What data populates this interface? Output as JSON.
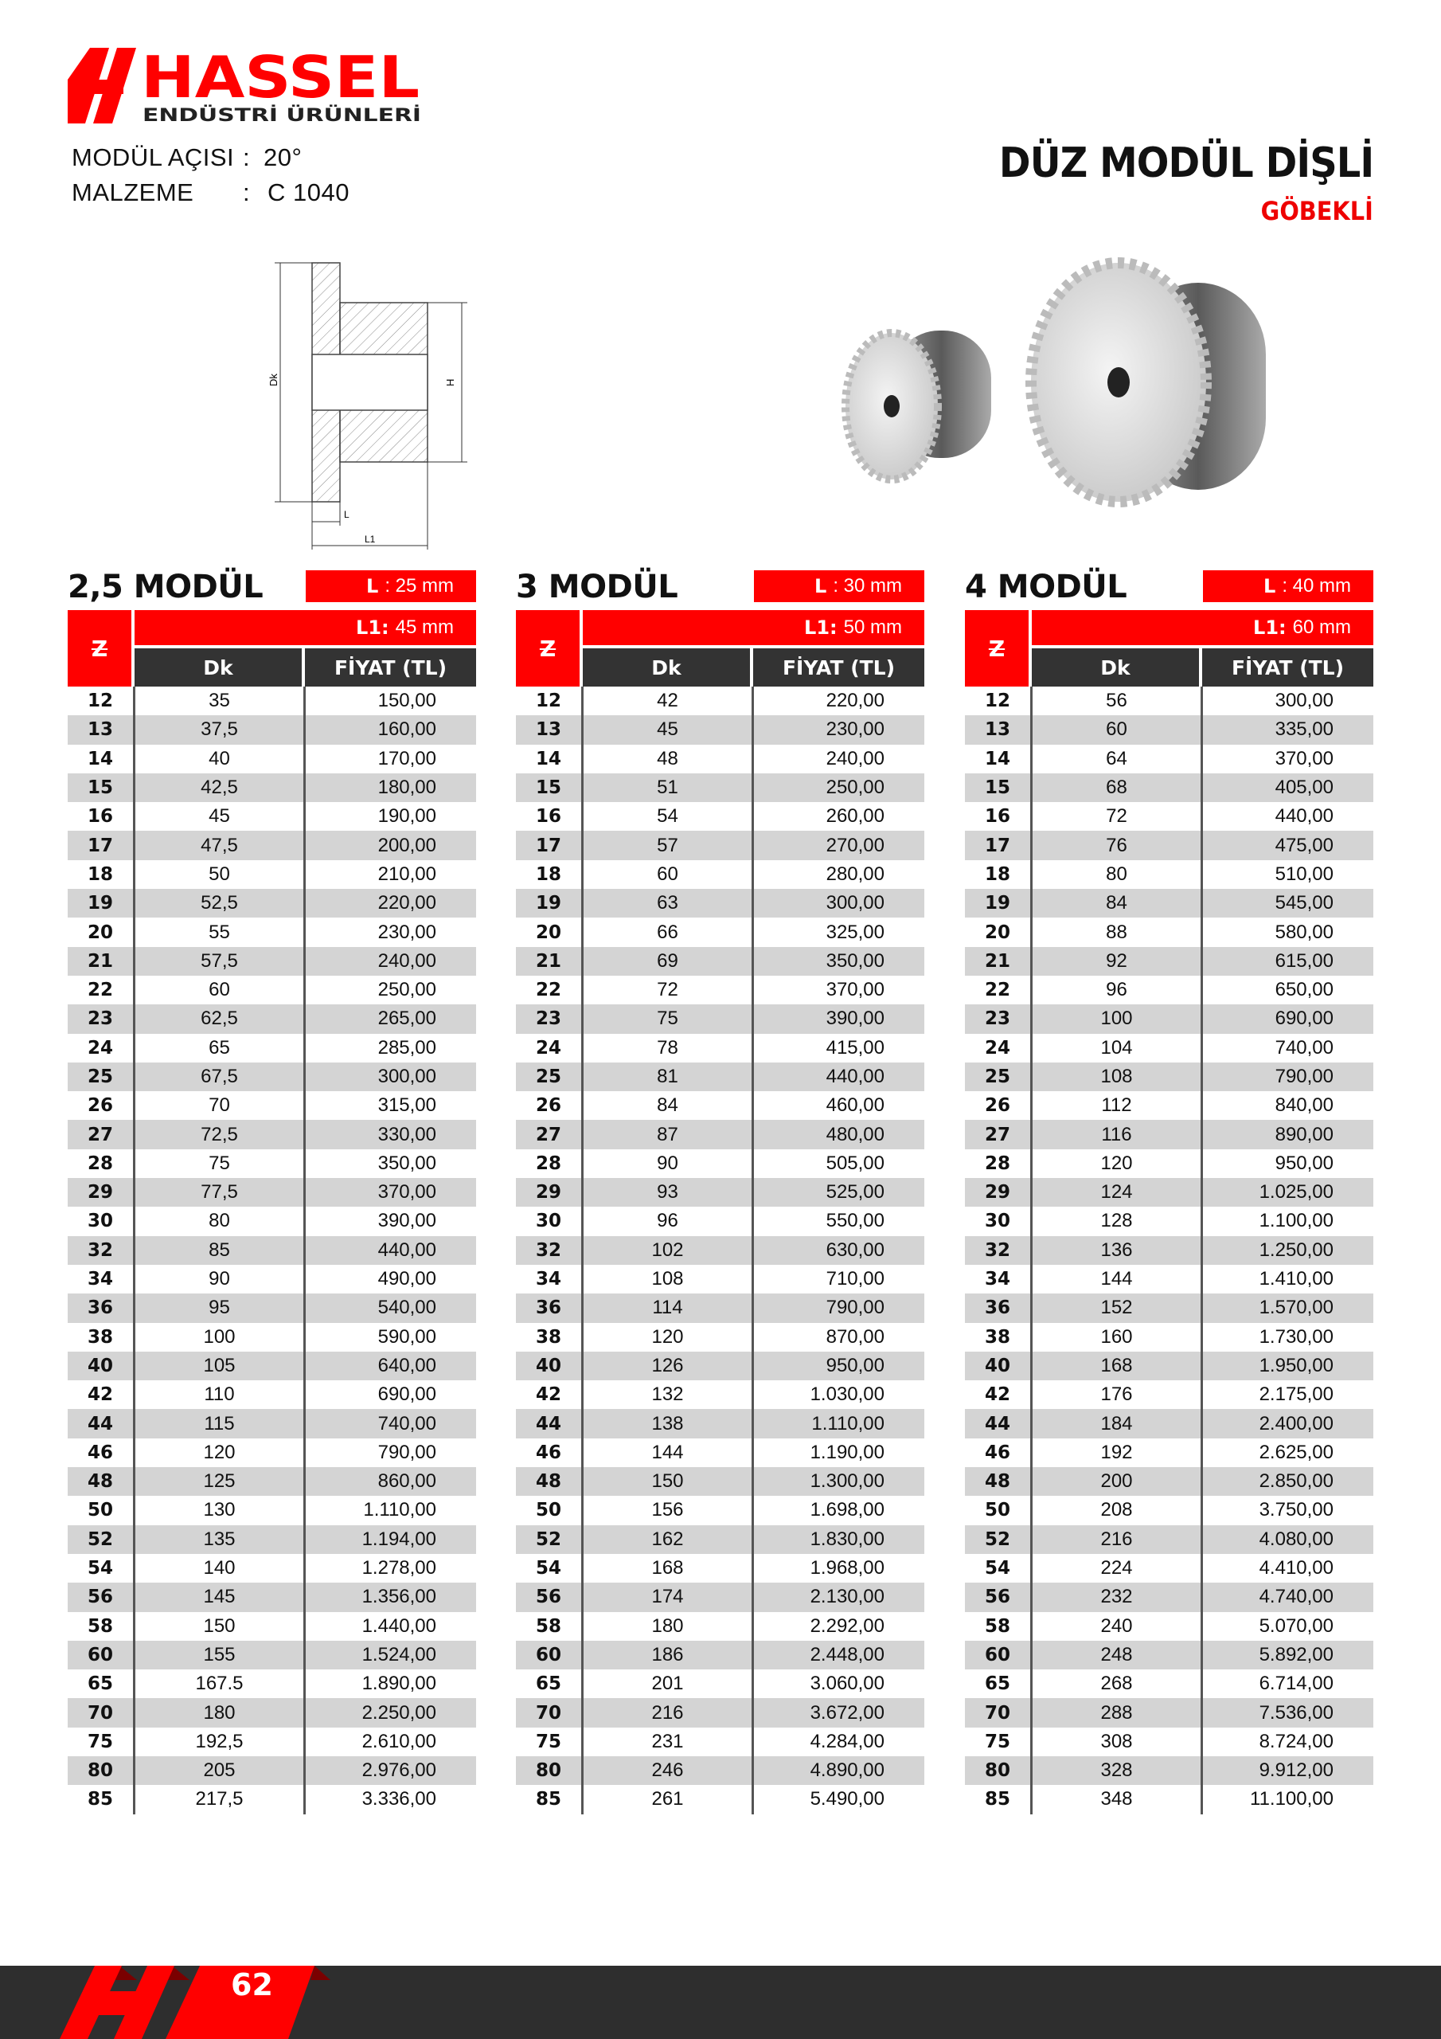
{
  "brand": {
    "name": "HASSEL",
    "tagline": "ENDÜSTRİ ÜRÜNLERİ",
    "color": "#ff0000"
  },
  "info": [
    {
      "label": "MODÜL AÇISI",
      "sep": ":",
      "value": "20°"
    },
    {
      "label": "MALZEME",
      "sep": ":",
      "value": "C 1040"
    }
  ],
  "header": {
    "title": "DÜZ MODÜL DİŞLİ",
    "subtitle": "GÖBEKLİ"
  },
  "diagram": {
    "dk": "Dk",
    "h": "H",
    "l": "L",
    "l1": "L1"
  },
  "tables": [
    {
      "module": "2,5 MODÜL",
      "l_label": "L",
      "l_value": ": 25 mm",
      "l1_label": "L1:",
      "l1_value": "45 mm",
      "z_header": "Z",
      "dk_header": "Dk",
      "price_header": "FİYAT (TL)",
      "rows": [
        [
          "12",
          "35",
          "150,00"
        ],
        [
          "13",
          "37,5",
          "160,00"
        ],
        [
          "14",
          "40",
          "170,00"
        ],
        [
          "15",
          "42,5",
          "180,00"
        ],
        [
          "16",
          "45",
          "190,00"
        ],
        [
          "17",
          "47,5",
          "200,00"
        ],
        [
          "18",
          "50",
          "210,00"
        ],
        [
          "19",
          "52,5",
          "220,00"
        ],
        [
          "20",
          "55",
          "230,00"
        ],
        [
          "21",
          "57,5",
          "240,00"
        ],
        [
          "22",
          "60",
          "250,00"
        ],
        [
          "23",
          "62,5",
          "265,00"
        ],
        [
          "24",
          "65",
          "285,00"
        ],
        [
          "25",
          "67,5",
          "300,00"
        ],
        [
          "26",
          "70",
          "315,00"
        ],
        [
          "27",
          "72,5",
          "330,00"
        ],
        [
          "28",
          "75",
          "350,00"
        ],
        [
          "29",
          "77,5",
          "370,00"
        ],
        [
          "30",
          "80",
          "390,00"
        ],
        [
          "32",
          "85",
          "440,00"
        ],
        [
          "34",
          "90",
          "490,00"
        ],
        [
          "36",
          "95",
          "540,00"
        ],
        [
          "38",
          "100",
          "590,00"
        ],
        [
          "40",
          "105",
          "640,00"
        ],
        [
          "42",
          "110",
          "690,00"
        ],
        [
          "44",
          "115",
          "740,00"
        ],
        [
          "46",
          "120",
          "790,00"
        ],
        [
          "48",
          "125",
          "860,00"
        ],
        [
          "50",
          "130",
          "1.110,00"
        ],
        [
          "52",
          "135",
          "1.194,00"
        ],
        [
          "54",
          "140",
          "1.278,00"
        ],
        [
          "56",
          "145",
          "1.356,00"
        ],
        [
          "58",
          "150",
          "1.440,00"
        ],
        [
          "60",
          "155",
          "1.524,00"
        ],
        [
          "65",
          "167.5",
          "1.890,00"
        ],
        [
          "70",
          "180",
          "2.250,00"
        ],
        [
          "75",
          "192,5",
          "2.610,00"
        ],
        [
          "80",
          "205",
          "2.976,00"
        ],
        [
          "85",
          "217,5",
          "3.336,00"
        ]
      ]
    },
    {
      "module": "3  MODÜL",
      "l_label": "L",
      "l_value": ": 30 mm",
      "l1_label": "L1:",
      "l1_value": "50 mm",
      "z_header": "Z",
      "dk_header": "Dk",
      "price_header": "FİYAT (TL)",
      "rows": [
        [
          "12",
          "42",
          "220,00"
        ],
        [
          "13",
          "45",
          "230,00"
        ],
        [
          "14",
          "48",
          "240,00"
        ],
        [
          "15",
          "51",
          "250,00"
        ],
        [
          "16",
          "54",
          "260,00"
        ],
        [
          "17",
          "57",
          "270,00"
        ],
        [
          "18",
          "60",
          "280,00"
        ],
        [
          "19",
          "63",
          "300,00"
        ],
        [
          "20",
          "66",
          "325,00"
        ],
        [
          "21",
          "69",
          "350,00"
        ],
        [
          "22",
          "72",
          "370,00"
        ],
        [
          "23",
          "75",
          "390,00"
        ],
        [
          "24",
          "78",
          "415,00"
        ],
        [
          "25",
          "81",
          "440,00"
        ],
        [
          "26",
          "84",
          "460,00"
        ],
        [
          "27",
          "87",
          "480,00"
        ],
        [
          "28",
          "90",
          "505,00"
        ],
        [
          "29",
          "93",
          "525,00"
        ],
        [
          "30",
          "96",
          "550,00"
        ],
        [
          "32",
          "102",
          "630,00"
        ],
        [
          "34",
          "108",
          "710,00"
        ],
        [
          "36",
          "114",
          "790,00"
        ],
        [
          "38",
          "120",
          "870,00"
        ],
        [
          "40",
          "126",
          "950,00"
        ],
        [
          "42",
          "132",
          "1.030,00"
        ],
        [
          "44",
          "138",
          "1.110,00"
        ],
        [
          "46",
          "144",
          "1.190,00"
        ],
        [
          "48",
          "150",
          "1.300,00"
        ],
        [
          "50",
          "156",
          "1.698,00"
        ],
        [
          "52",
          "162",
          "1.830,00"
        ],
        [
          "54",
          "168",
          "1.968,00"
        ],
        [
          "56",
          "174",
          "2.130,00"
        ],
        [
          "58",
          "180",
          "2.292,00"
        ],
        [
          "60",
          "186",
          "2.448,00"
        ],
        [
          "65",
          "201",
          "3.060,00"
        ],
        [
          "70",
          "216",
          "3.672,00"
        ],
        [
          "75",
          "231",
          "4.284,00"
        ],
        [
          "80",
          "246",
          "4.890,00"
        ],
        [
          "85",
          "261",
          "5.490,00"
        ]
      ]
    },
    {
      "module": "4  MODÜL",
      "l_label": "L",
      "l_value": ": 40 mm",
      "l1_label": "L1:",
      "l1_value": "60 mm",
      "z_header": "Z",
      "dk_header": "Dk",
      "price_header": "FİYAT (TL)",
      "rows": [
        [
          "12",
          "56",
          "300,00"
        ],
        [
          "13",
          "60",
          "335,00"
        ],
        [
          "14",
          "64",
          "370,00"
        ],
        [
          "15",
          "68",
          "405,00"
        ],
        [
          "16",
          "72",
          "440,00"
        ],
        [
          "17",
          "76",
          "475,00"
        ],
        [
          "18",
          "80",
          "510,00"
        ],
        [
          "19",
          "84",
          "545,00"
        ],
        [
          "20",
          "88",
          "580,00"
        ],
        [
          "21",
          "92",
          "615,00"
        ],
        [
          "22",
          "96",
          "650,00"
        ],
        [
          "23",
          "100",
          "690,00"
        ],
        [
          "24",
          "104",
          "740,00"
        ],
        [
          "25",
          "108",
          "790,00"
        ],
        [
          "26",
          "112",
          "840,00"
        ],
        [
          "27",
          "116",
          "890,00"
        ],
        [
          "28",
          "120",
          "950,00"
        ],
        [
          "29",
          "124",
          "1.025,00"
        ],
        [
          "30",
          "128",
          "1.100,00"
        ],
        [
          "32",
          "136",
          "1.250,00"
        ],
        [
          "34",
          "144",
          "1.410,00"
        ],
        [
          "36",
          "152",
          "1.570,00"
        ],
        [
          "38",
          "160",
          "1.730,00"
        ],
        [
          "40",
          "168",
          "1.950,00"
        ],
        [
          "42",
          "176",
          "2.175,00"
        ],
        [
          "44",
          "184",
          "2.400,00"
        ],
        [
          "46",
          "192",
          "2.625,00"
        ],
        [
          "48",
          "200",
          "2.850,00"
        ],
        [
          "50",
          "208",
          "3.750,00"
        ],
        [
          "52",
          "216",
          "4.080,00"
        ],
        [
          "54",
          "224",
          "4.410,00"
        ],
        [
          "56",
          "232",
          "4.740,00"
        ],
        [
          "58",
          "240",
          "5.070,00"
        ],
        [
          "60",
          "248",
          "5.892,00"
        ],
        [
          "65",
          "268",
          "6.714,00"
        ],
        [
          "70",
          "288",
          "7.536,00"
        ],
        [
          "75",
          "308",
          "8.724,00"
        ],
        [
          "80",
          "328",
          "9.912,00"
        ],
        [
          "85",
          "348",
          "11.100,00"
        ]
      ]
    }
  ],
  "footer": {
    "page_number": "62",
    "bar_color": "#2e2e2e"
  }
}
